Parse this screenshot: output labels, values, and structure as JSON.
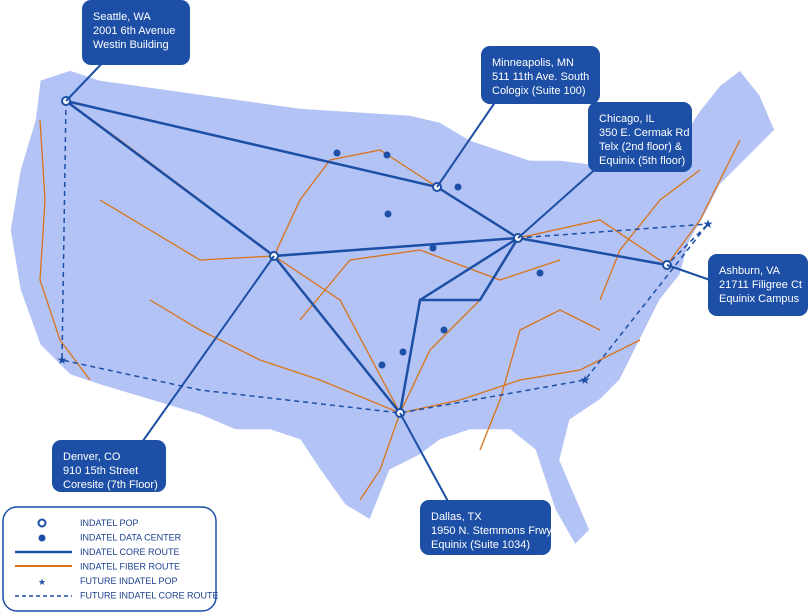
{
  "callouts": [
    {
      "lines": [
        "Seattle, WA",
        "2001 6th Avenue",
        "Westin Building"
      ]
    },
    {
      "lines": [
        "Minneapolis, MN",
        "511 11th Ave. South",
        "Cologix (Suite 100)"
      ]
    },
    {
      "lines": [
        "Chicago, IL",
        "350 E. Cermak Rd",
        "Telx (2nd floor) &",
        "Equinix (5th floor)"
      ]
    },
    {
      "lines": [
        "Ashburn, VA",
        "21711 Filigree Ct",
        "Equinix Campus"
      ]
    },
    {
      "lines": [
        "Denver, CO",
        "910 15th Street",
        "Coresite (7th Floor)"
      ]
    },
    {
      "lines": [
        "Dallas, TX",
        "1950 N. Stemmons Frwy",
        "Equinix (Suite 1034)"
      ]
    }
  ],
  "legend": {
    "items": [
      "INDATEL POP",
      "INDATEL DATA CENTER",
      "INDATEL CORE ROUTE",
      "INDATEL FIBER ROUTE",
      "FUTURE INDATEL POP",
      "FUTURE INDATEL CORE ROUTE"
    ]
  }
}
